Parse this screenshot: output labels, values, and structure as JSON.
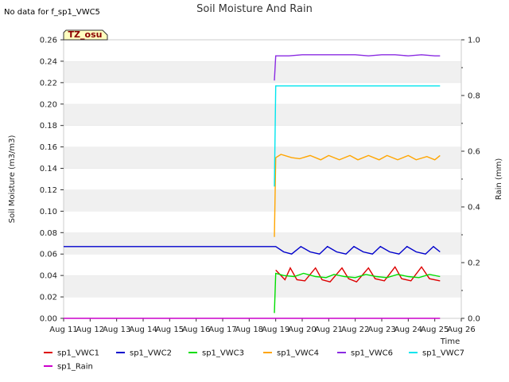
{
  "chart_data": {
    "type": "line",
    "title": "Soil Moisture And Rain",
    "no_data_note": "No data for f_sp1_VWC5",
    "station_label": "TZ_osu",
    "xlabel": "Time",
    "ylabel": "Soil Moisture (m3/m3)",
    "y2label": "Rain (mm)",
    "x_ticks": [
      "Aug 11",
      "Aug 12",
      "Aug 13",
      "Aug 14",
      "Aug 15",
      "Aug 16",
      "Aug 17",
      "Aug 18",
      "Aug 19",
      "Aug 20",
      "Aug 21",
      "Aug 22",
      "Aug 23",
      "Aug 24",
      "Aug 25",
      "Aug 26"
    ],
    "xlim": [
      11,
      26
    ],
    "y_ticks": [
      "0.00",
      "0.02",
      "0.04",
      "0.06",
      "0.08",
      "0.10",
      "0.12",
      "0.14",
      "0.16",
      "0.18",
      "0.20",
      "0.22",
      "0.24",
      "0.26"
    ],
    "ylim": [
      0,
      0.26
    ],
    "y2_ticks": [
      "0.0",
      "0.2",
      "0.4",
      "0.6",
      "0.8",
      "1.0"
    ],
    "y2lim": [
      0,
      1.0
    ],
    "grid": "horizontal bands",
    "legend_position": "bottom",
    "series": [
      {
        "name": "sp1_VWC1",
        "color": "#dd0000",
        "axis": "left",
        "x": [
          19.0,
          19.35,
          19.55,
          19.8,
          20.1,
          20.5,
          20.75,
          21.05,
          21.5,
          21.75,
          22.05,
          22.5,
          22.75,
          23.1,
          23.5,
          23.75,
          24.1,
          24.5,
          24.8,
          25.2
        ],
        "y": [
          0.045,
          0.036,
          0.047,
          0.036,
          0.035,
          0.047,
          0.036,
          0.034,
          0.047,
          0.037,
          0.034,
          0.047,
          0.037,
          0.035,
          0.048,
          0.037,
          0.035,
          0.048,
          0.037,
          0.035
        ]
      },
      {
        "name": "sp1_VWC2",
        "color": "#0000cc",
        "axis": "left",
        "x": [
          11.0,
          19.0,
          19.3,
          19.6,
          19.95,
          20.3,
          20.65,
          20.95,
          21.3,
          21.65,
          21.95,
          22.3,
          22.65,
          22.95,
          23.3,
          23.65,
          23.95,
          24.3,
          24.65,
          24.95,
          25.2
        ],
        "y": [
          0.067,
          0.067,
          0.062,
          0.06,
          0.067,
          0.062,
          0.06,
          0.067,
          0.062,
          0.06,
          0.067,
          0.062,
          0.06,
          0.067,
          0.062,
          0.06,
          0.067,
          0.062,
          0.06,
          0.067,
          0.062
        ]
      },
      {
        "name": "sp1_VWC3",
        "color": "#00dd00",
        "axis": "left",
        "x": [
          18.95,
          19.0,
          19.3,
          19.7,
          20.05,
          20.5,
          20.9,
          21.2,
          21.6,
          22.0,
          22.4,
          22.8,
          23.2,
          23.6,
          24.0,
          24.4,
          24.8,
          25.2
        ],
        "y": [
          0.005,
          0.042,
          0.04,
          0.039,
          0.042,
          0.039,
          0.038,
          0.041,
          0.039,
          0.038,
          0.041,
          0.039,
          0.038,
          0.041,
          0.039,
          0.038,
          0.041,
          0.039
        ]
      },
      {
        "name": "sp1_VWC4",
        "color": "#ffa500",
        "axis": "left",
        "x": [
          18.95,
          19.0,
          19.2,
          19.6,
          19.9,
          20.3,
          20.7,
          21.0,
          21.4,
          21.8,
          22.1,
          22.5,
          22.9,
          23.2,
          23.6,
          24.0,
          24.3,
          24.7,
          25.0,
          25.2
        ],
        "y": [
          0.076,
          0.15,
          0.153,
          0.15,
          0.149,
          0.152,
          0.148,
          0.152,
          0.148,
          0.152,
          0.148,
          0.152,
          0.148,
          0.152,
          0.148,
          0.152,
          0.148,
          0.151,
          0.148,
          0.152
        ]
      },
      {
        "name": "sp1_VWC6",
        "color": "#8a2be2",
        "axis": "left",
        "x": [
          18.95,
          19.0,
          19.5,
          20.0,
          20.5,
          21.0,
          21.5,
          22.0,
          22.5,
          23.0,
          23.5,
          24.0,
          24.5,
          25.0,
          25.2
        ],
        "y": [
          0.222,
          0.245,
          0.245,
          0.246,
          0.246,
          0.246,
          0.246,
          0.246,
          0.245,
          0.246,
          0.246,
          0.245,
          0.246,
          0.245,
          0.245
        ]
      },
      {
        "name": "sp1_VWC7",
        "color": "#00e5ee",
        "axis": "left",
        "x": [
          18.95,
          19.0,
          19.5,
          20.0,
          20.5,
          21.0,
          21.5,
          22.0,
          22.5,
          23.0,
          23.5,
          24.0,
          24.5,
          25.0,
          25.2
        ],
        "y": [
          0.123,
          0.217,
          0.217,
          0.217,
          0.217,
          0.217,
          0.217,
          0.217,
          0.217,
          0.217,
          0.217,
          0.217,
          0.217,
          0.217,
          0.217
        ]
      },
      {
        "name": "sp1_Rain",
        "color": "#cc00cc",
        "axis": "right",
        "x": [
          11.0,
          25.2
        ],
        "y": [
          0.0,
          0.0
        ]
      }
    ]
  }
}
